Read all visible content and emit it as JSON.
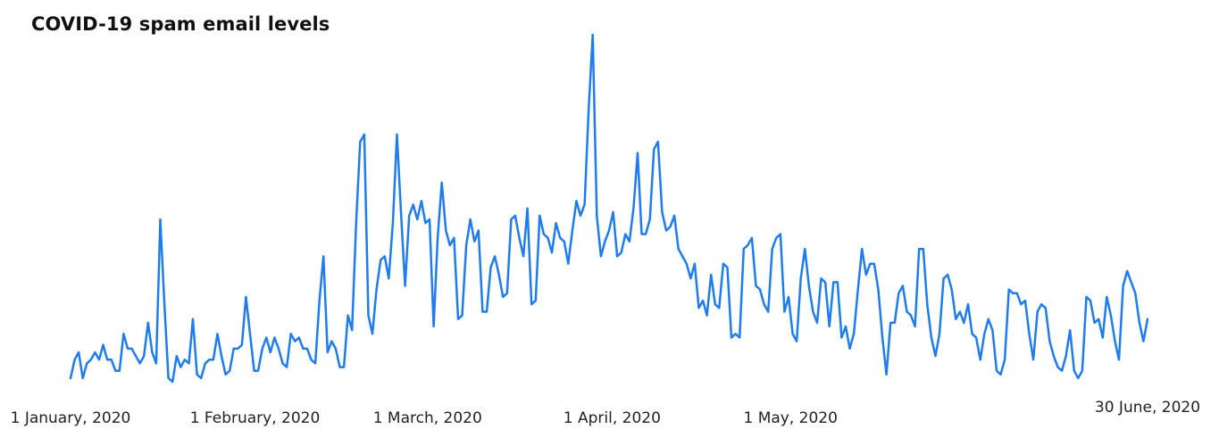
{
  "chart_data": {
    "type": "line",
    "title": "COVID-19 spam email levels",
    "xlabel": "",
    "ylabel": "",
    "grid": false,
    "legend": "none",
    "x_start": "2020-01-01",
    "x_end": "2020-06-30",
    "x_tick_labels": [
      {
        "date": "2020-01-01",
        "label": "1 January, 2020"
      },
      {
        "date": "2020-02-01",
        "label": "1 February, 2020"
      },
      {
        "date": "2020-03-01",
        "label": "1 March, 2020"
      },
      {
        "date": "2020-04-01",
        "label": "1 April, 2020"
      },
      {
        "date": "2020-05-01",
        "label": "1 May, 2020"
      },
      {
        "date": "2020-06-30",
        "label": "30 June, 2020"
      }
    ],
    "y_range": [
      0,
      100
    ],
    "series": [
      {
        "name": "",
        "color": "#1f7cf0",
        "values": [
          0,
          5,
          7,
          0,
          4,
          5,
          7,
          5,
          9,
          5,
          5,
          2,
          2,
          12,
          8,
          8,
          6,
          4,
          6,
          15,
          7,
          4,
          43,
          20,
          0,
          -1,
          6,
          3,
          5,
          4,
          16,
          1,
          0,
          4,
          5,
          5,
          12,
          6,
          1,
          2,
          8,
          8,
          9,
          22,
          12,
          2,
          2,
          8,
          11,
          7,
          11,
          8,
          4,
          3,
          12,
          10,
          11,
          8,
          8,
          5,
          4,
          21,
          33,
          7,
          10,
          8,
          3,
          3,
          17,
          13,
          42,
          64,
          66,
          17,
          12,
          24,
          32,
          33,
          27,
          42,
          66,
          45,
          25,
          44,
          47,
          43,
          48,
          42,
          43,
          14,
          38,
          53,
          40,
          36,
          38,
          16,
          17,
          36,
          43,
          37,
          40,
          18,
          18,
          30,
          33,
          28,
          22,
          23,
          43,
          44,
          38,
          33,
          46,
          20,
          21,
          44,
          39,
          38,
          34,
          42,
          38,
          37,
          31,
          40,
          48,
          44,
          47,
          73,
          93,
          44,
          33,
          37,
          40,
          45,
          33,
          34,
          39,
          37,
          46,
          61,
          39,
          39,
          43,
          62,
          64,
          45,
          40,
          41,
          44,
          35,
          33,
          31,
          27,
          31,
          19,
          21,
          17,
          28,
          20,
          19,
          31,
          30,
          11,
          12,
          11,
          35,
          36,
          38,
          25,
          24,
          20,
          18,
          35,
          38,
          39,
          18,
          22,
          12,
          10,
          27,
          35,
          25,
          18,
          15,
          27,
          26,
          14,
          26,
          26,
          11,
          14,
          8,
          12,
          24,
          35,
          28,
          31,
          31,
          24,
          11,
          1,
          15,
          15,
          23,
          25,
          18,
          17,
          14,
          35,
          35,
          20,
          11,
          6,
          12,
          27,
          28,
          24,
          16,
          18,
          15,
          20,
          12,
          11,
          5,
          12,
          16,
          13,
          2,
          1,
          5,
          24,
          23,
          23,
          20,
          21,
          12,
          5,
          18,
          20,
          19,
          10,
          6,
          3,
          2,
          6,
          13,
          2,
          0,
          2,
          22,
          21,
          15,
          16,
          11,
          22,
          17,
          10,
          5,
          25,
          29,
          26,
          23,
          15,
          10,
          16
        ]
      }
    ]
  }
}
